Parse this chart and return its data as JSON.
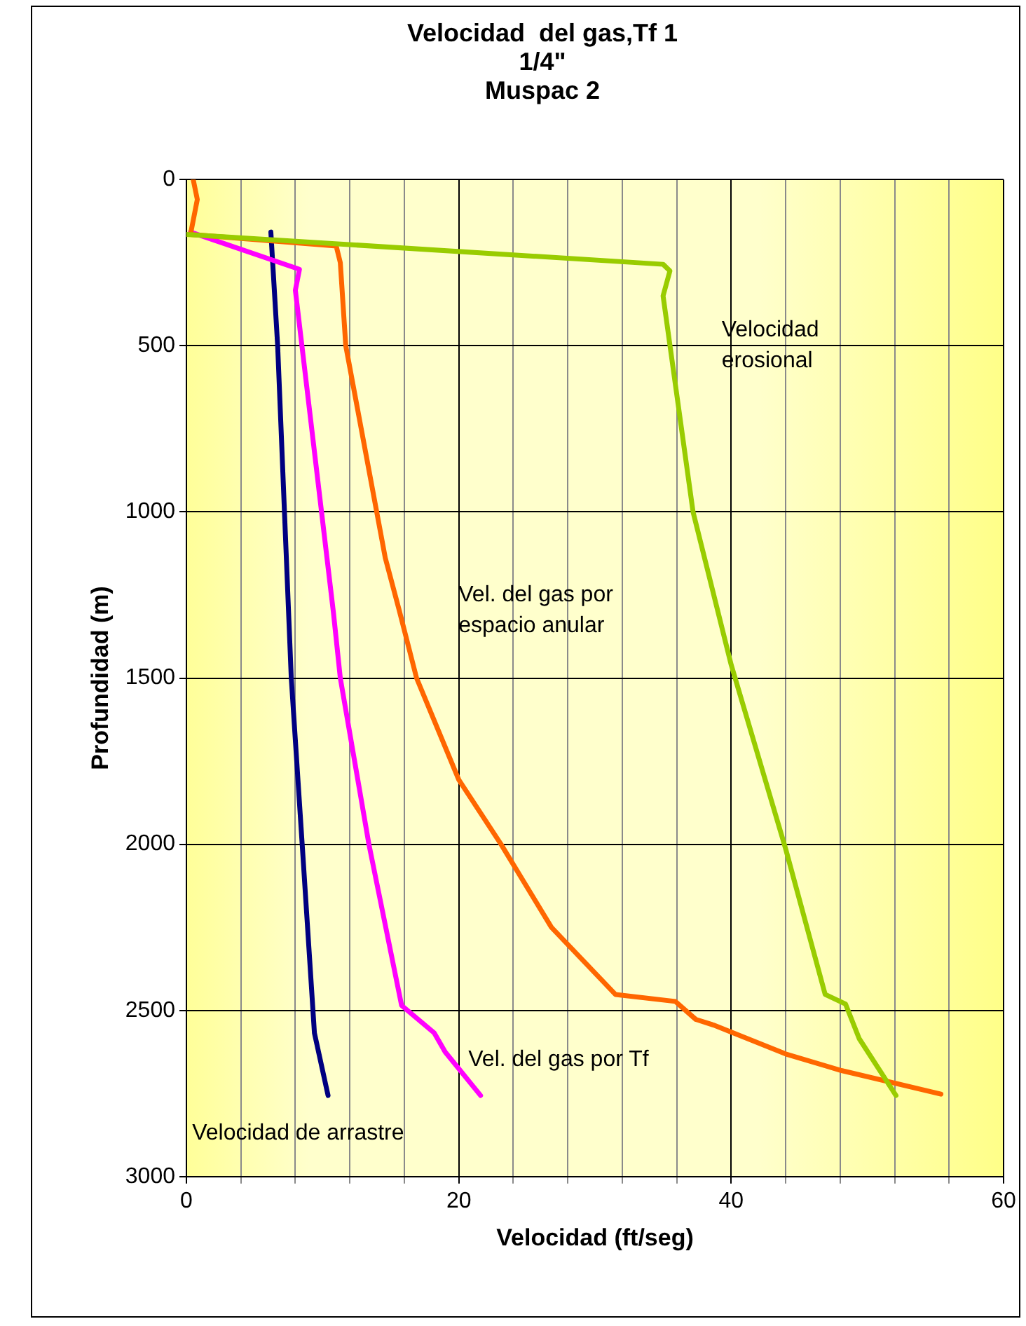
{
  "chart_data": {
    "type": "line",
    "title": "Velocidad  del gas,Tf 1\n1/4\"\nMuspac 2",
    "xlabel": "Velocidad (ft/seg)",
    "ylabel": "Profundidad (m)",
    "xlim": [
      0,
      60
    ],
    "xticks": [
      0,
      {
        "value": 4,
        "label": null
      },
      {
        "value": 8,
        "label": null
      },
      {
        "value": 12,
        "label": null
      },
      {
        "value": 16,
        "label": null
      },
      20,
      {
        "value": 24,
        "label": null
      },
      {
        "value": 28,
        "label": null
      },
      {
        "value": 32,
        "label": null
      },
      {
        "value": 36,
        "label": null
      },
      40,
      {
        "value": 44,
        "label": null
      },
      {
        "value": 48,
        "label": null
      },
      {
        "value": 52,
        "label": null
      },
      {
        "value": 56,
        "label": null
      },
      60
    ],
    "ylim": [
      3000,
      0
    ],
    "yticks": [
      0,
      500,
      1000,
      1500,
      2000,
      2500,
      3000
    ],
    "grid": true,
    "legend": false,
    "line_style": "solid",
    "series": [
      {
        "name": "Velocidad\nerosional",
        "color": "#99cc00",
        "x": [
          0,
          35,
          35.5,
          35,
          37.2,
          40,
          44,
          46.9,
          48.4,
          49.4,
          52.1
        ],
        "values": [
          165,
          255,
          275,
          350,
          1000,
          1460,
          2014,
          2452,
          2481,
          2585,
          2756
        ]
      },
      {
        "name": "Vel. del gas por\nespacio anular",
        "color": "#ff6600",
        "x": [
          0.5,
          0.8,
          0.3,
          11,
          11.3,
          11.7,
          14.6,
          15.6,
          16.9,
          20,
          23.1,
          26.8,
          31.5,
          35.9,
          37.4,
          38.7,
          44,
          48.1,
          55.4
        ],
        "values": [
          0,
          60,
          165,
          200,
          250,
          500,
          1138,
          1292,
          1500,
          1806,
          2000,
          2250,
          2452,
          2473,
          2527,
          2544,
          2631,
          2681,
          2752
        ]
      },
      {
        "name": "Vel. del gas por Tf",
        "color": "#ff00ff",
        "x": [
          0.3,
          8.3,
          8,
          10.8,
          11.3,
          13.4,
          15.8,
          18.2,
          19,
          21.6
        ],
        "values": [
          158,
          270,
          333,
          1305,
          1500,
          2000,
          2485,
          2568,
          2625,
          2756
        ]
      },
      {
        "name": "Velocidad de arrastre",
        "color": "#000080",
        "x": [
          6.2,
          6.7,
          7.7,
          8.5,
          9.4,
          10.4
        ],
        "values": [
          158,
          500,
          1500,
          2000,
          2568,
          2756
        ]
      }
    ]
  }
}
